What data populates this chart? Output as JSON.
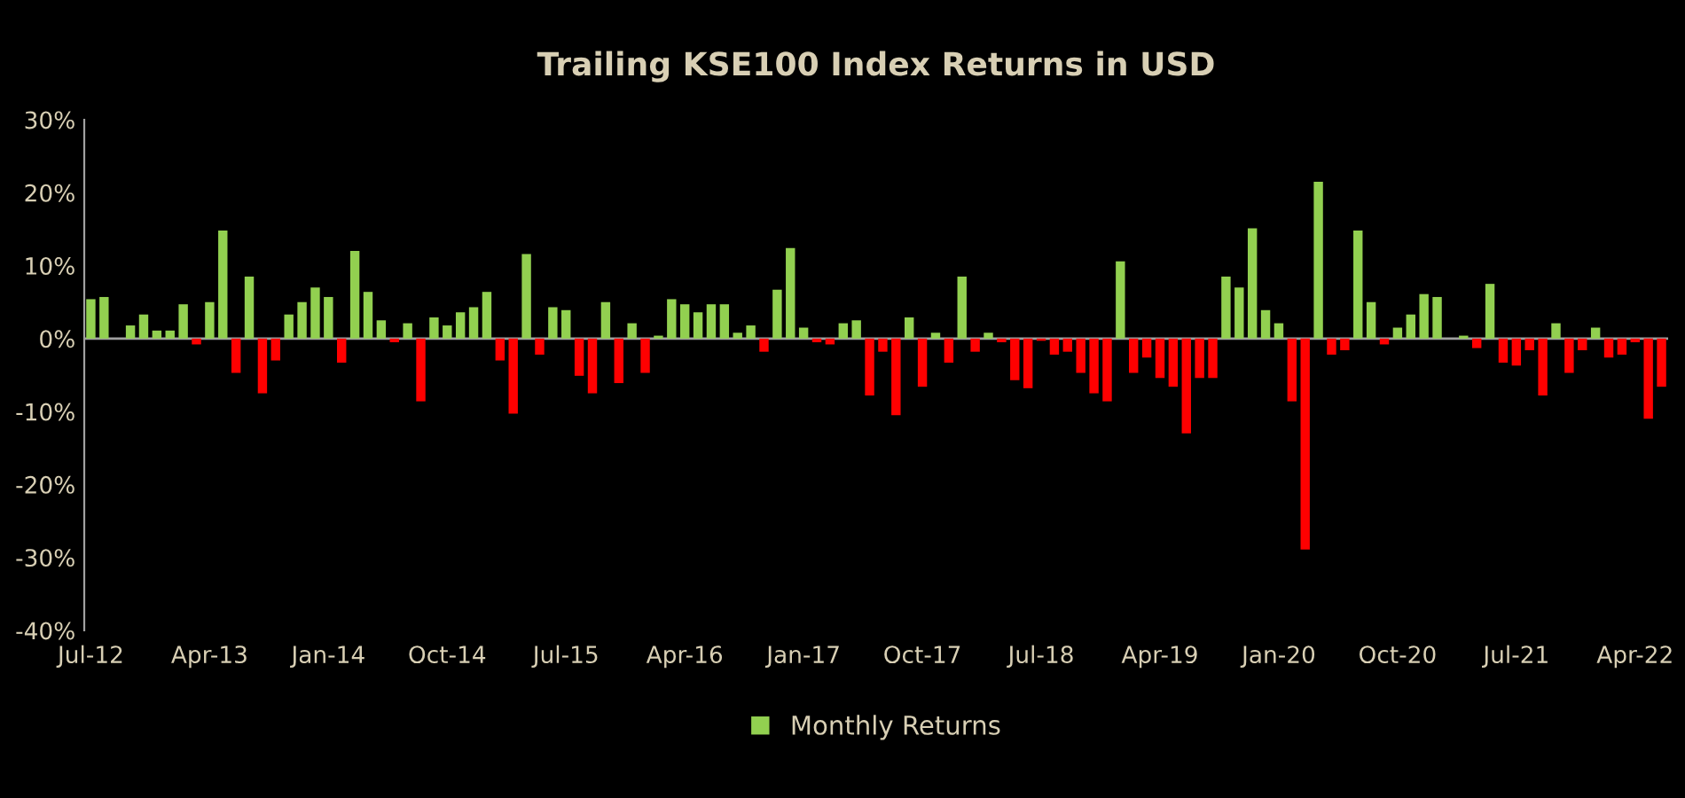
{
  "chart_data": {
    "type": "bar",
    "title": "Trailing KSE100 Index Returns in USD",
    "categories": [
      "Jul-12",
      null,
      null,
      null,
      null,
      null,
      null,
      null,
      null,
      "Apr-13",
      null,
      null,
      null,
      null,
      null,
      null,
      null,
      null,
      "Jan-14",
      null,
      null,
      null,
      null,
      null,
      null,
      null,
      null,
      "Oct-14",
      null,
      null,
      null,
      null,
      null,
      null,
      null,
      null,
      "Jul-15",
      null,
      null,
      null,
      null,
      null,
      null,
      null,
      null,
      "Apr-16",
      null,
      null,
      null,
      null,
      null,
      null,
      null,
      null,
      "Jan-17",
      null,
      null,
      null,
      null,
      null,
      null,
      null,
      null,
      "Oct-17",
      null,
      null,
      null,
      null,
      null,
      null,
      null,
      null,
      "Jul-18",
      null,
      null,
      null,
      null,
      null,
      null,
      null,
      null,
      "Apr-19",
      null,
      null,
      null,
      null,
      null,
      null,
      null,
      null,
      "Jan-20",
      null,
      null,
      null,
      null,
      null,
      null,
      null,
      null,
      "Oct-20",
      null,
      null,
      null,
      null,
      null,
      null,
      null,
      null,
      "Jul-21",
      null,
      null,
      null,
      null,
      null,
      null,
      null,
      null,
      "Apr-22",
      null,
      null
    ],
    "series": [
      {
        "name": "Monthly Returns",
        "color": "#92d050",
        "values": [
          5.4,
          5.7,
          0,
          1.8,
          3.3,
          1.1,
          1.1,
          4.7,
          -0.8,
          5.0,
          14.8,
          -4.7,
          8.5,
          -7.5,
          -3.0,
          3.3,
          5.0,
          7.0,
          5.7,
          -3.3,
          12.0,
          6.4,
          2.5,
          -0.5,
          2.1,
          -8.6,
          2.9,
          1.8,
          3.6,
          4.3,
          6.4,
          -3.0,
          -10.3,
          11.6,
          -2.2,
          4.3,
          3.9,
          -5.1,
          -7.5,
          5.0,
          -6.1,
          2.1,
          -4.7,
          0.4,
          5.4,
          4.7,
          3.6,
          4.7,
          4.7,
          0.8,
          1.8,
          -1.8,
          6.7,
          12.4,
          1.5,
          -0.5,
          -0.8,
          2.1,
          2.5,
          -7.8,
          -1.8,
          -10.5,
          2.9,
          -6.6,
          0.8,
          -3.3,
          8.5,
          -1.8,
          0.8,
          -0.5,
          -5.7,
          -6.8,
          -0.3,
          -2.2,
          -1.8,
          -4.7,
          -7.5,
          -8.6,
          10.6,
          -4.7,
          -2.6,
          -5.4,
          -6.6,
          -13.0,
          -5.4,
          -5.4,
          8.5,
          7.0,
          15.1,
          3.9,
          2.1,
          -8.6,
          -28.9,
          21.5,
          -2.2,
          -1.6,
          14.8,
          5.0,
          -0.8,
          1.5,
          3.3,
          6.1,
          5.7,
          0,
          0.4,
          -1.3,
          7.5,
          -3.3,
          -3.7,
          -1.6,
          -7.8,
          2.1,
          -4.7,
          -1.6,
          1.5,
          -2.6,
          -2.2,
          -0.5,
          -11.0,
          -6.6
        ],
        "colors": [
          "#92d050",
          "#92d050",
          "#92d050",
          "#92d050",
          "#92d050",
          "#92d050",
          "#92d050",
          "#92d050",
          "#ff0000",
          "#92d050",
          "#92d050",
          "#ff0000",
          "#92d050",
          "#ff0000",
          "#ff0000",
          "#92d050",
          "#92d050",
          "#92d050",
          "#92d050",
          "#ff0000",
          "#92d050",
          "#92d050",
          "#92d050",
          "#ff0000",
          "#92d050",
          "#ff0000",
          "#92d050",
          "#92d050",
          "#92d050",
          "#92d050",
          "#92d050",
          "#ff0000",
          "#ff0000",
          "#92d050",
          "#ff0000",
          "#92d050",
          "#92d050",
          "#ff0000",
          "#ff0000",
          "#92d050",
          "#ff0000",
          "#92d050",
          "#ff0000",
          "#92d050",
          "#92d050",
          "#92d050",
          "#92d050",
          "#92d050",
          "#92d050",
          "#92d050",
          "#92d050",
          "#ff0000",
          "#92d050",
          "#92d050",
          "#92d050",
          "#ff0000",
          "#ff0000",
          "#92d050",
          "#92d050",
          "#ff0000",
          "#ff0000",
          "#ff0000",
          "#92d050",
          "#ff0000",
          "#92d050",
          "#ff0000",
          "#92d050",
          "#ff0000",
          "#92d050",
          "#ff0000",
          "#ff0000",
          "#ff0000",
          "#ff0000",
          "#ff0000",
          "#ff0000",
          "#ff0000",
          "#ff0000",
          "#ff0000",
          "#92d050",
          "#ff0000",
          "#ff0000",
          "#ff0000",
          "#ff0000",
          "#ff0000",
          "#ff0000",
          "#ff0000",
          "#92d050",
          "#92d050",
          "#92d050",
          "#92d050",
          "#92d050",
          "#ff0000",
          "#ff0000",
          "#92d050",
          "#ff0000",
          "#ff0000",
          "#92d050",
          "#92d050",
          "#ff0000",
          "#92d050",
          "#92d050",
          "#92d050",
          "#92d050",
          "#92d050",
          "#92d050",
          "#ff0000",
          "#92d050",
          "#ff0000",
          "#ff0000",
          "#ff0000",
          "#ff0000",
          "#92d050",
          "#ff0000",
          "#ff0000",
          "#92d050",
          "#ff0000",
          "#ff0000",
          "#ff0000",
          "#ff0000",
          "#ff0000"
        ]
      }
    ],
    "ylim": [
      -40,
      30
    ],
    "yticks": [
      {
        "value": -40,
        "label": "-40%"
      },
      {
        "value": -30,
        "label": "-30%"
      },
      {
        "value": -20,
        "label": "-20%"
      },
      {
        "value": -10,
        "label": "-10%"
      },
      {
        "value": 0,
        "label": "0%"
      },
      {
        "value": 10,
        "label": "10%"
      },
      {
        "value": 20,
        "label": "20%"
      },
      {
        "value": 30,
        "label": "30%"
      }
    ],
    "ref_lines": [
      {
        "axis": "y",
        "value": 0,
        "color": "#a0a0a0"
      }
    ],
    "grid": false,
    "legend": "bottom"
  }
}
